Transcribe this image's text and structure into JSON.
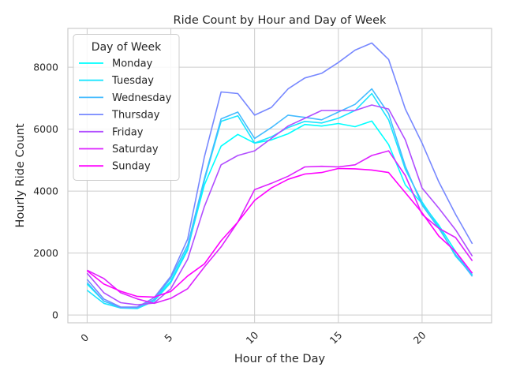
{
  "chart_data": {
    "type": "line",
    "title": "Ride Count by Hour and Day of Week",
    "xlabel": "Hour of the Day",
    "ylabel": "Hourly Ride Count",
    "xlim": [
      -1.15,
      24.15
    ],
    "ylim": [
      -250,
      9250
    ],
    "xticks": [
      0,
      5,
      10,
      15,
      20
    ],
    "yticks": [
      0,
      2000,
      4000,
      6000,
      8000
    ],
    "grid": true,
    "legend": {
      "title": "Day of Week",
      "position": "upper-left"
    },
    "x": [
      0,
      1,
      2,
      3,
      4,
      5,
      6,
      7,
      8,
      9,
      10,
      11,
      12,
      13,
      14,
      15,
      16,
      17,
      18,
      19,
      20,
      21,
      22,
      23
    ],
    "series": [
      {
        "name": "Monday",
        "color": "#00ffff",
        "values": [
          1000,
          450,
          250,
          230,
          500,
          1100,
          2150,
          4200,
          5450,
          5830,
          5550,
          5650,
          5850,
          6150,
          6100,
          6180,
          6080,
          6260,
          5500,
          4200,
          3600,
          2900,
          2050,
          1250
        ]
      },
      {
        "name": "Tuesday",
        "color": "#1ae5ff",
        "values": [
          800,
          380,
          230,
          210,
          450,
          1050,
          2100,
          4350,
          6250,
          6430,
          5550,
          5750,
          6050,
          6250,
          6200,
          6350,
          6600,
          7150,
          6300,
          4700,
          3650,
          2850,
          1900,
          1300
        ]
      },
      {
        "name": "Wednesday",
        "color": "#44bbff",
        "values": [
          1050,
          450,
          240,
          240,
          500,
          1200,
          2250,
          4400,
          6330,
          6550,
          5700,
          6050,
          6450,
          6380,
          6300,
          6550,
          6800,
          7300,
          6500,
          4800,
          3550,
          2800,
          1950,
          1250
        ]
      },
      {
        "name": "Thursday",
        "color": "#7788ff",
        "values": [
          1150,
          520,
          260,
          260,
          560,
          1250,
          2450,
          5100,
          7200,
          7150,
          6450,
          6700,
          7300,
          7650,
          7800,
          8150,
          8550,
          8780,
          8250,
          6650,
          5550,
          4300,
          3250,
          2300
        ]
      },
      {
        "name": "Friday",
        "color": "#b14eff",
        "values": [
          1350,
          720,
          400,
          330,
          390,
          850,
          1800,
          3500,
          4850,
          5150,
          5300,
          5700,
          6100,
          6350,
          6600,
          6600,
          6600,
          6780,
          6650,
          5650,
          4100,
          3450,
          2750,
          1900
        ]
      },
      {
        "name": "Saturday",
        "color": "#dd22ff",
        "values": [
          1450,
          1180,
          720,
          520,
          380,
          540,
          850,
          1550,
          2200,
          3000,
          4050,
          4250,
          4480,
          4780,
          4800,
          4780,
          4850,
          5150,
          5300,
          4500,
          3250,
          2800,
          2500,
          1750
        ]
      },
      {
        "name": "Sunday",
        "color": "#ff00ff",
        "values": [
          1430,
          1000,
          770,
          600,
          580,
          760,
          1260,
          1650,
          2400,
          3000,
          3700,
          4100,
          4380,
          4550,
          4600,
          4730,
          4720,
          4680,
          4600,
          3950,
          3300,
          2550,
          2050,
          1350
        ]
      }
    ]
  }
}
